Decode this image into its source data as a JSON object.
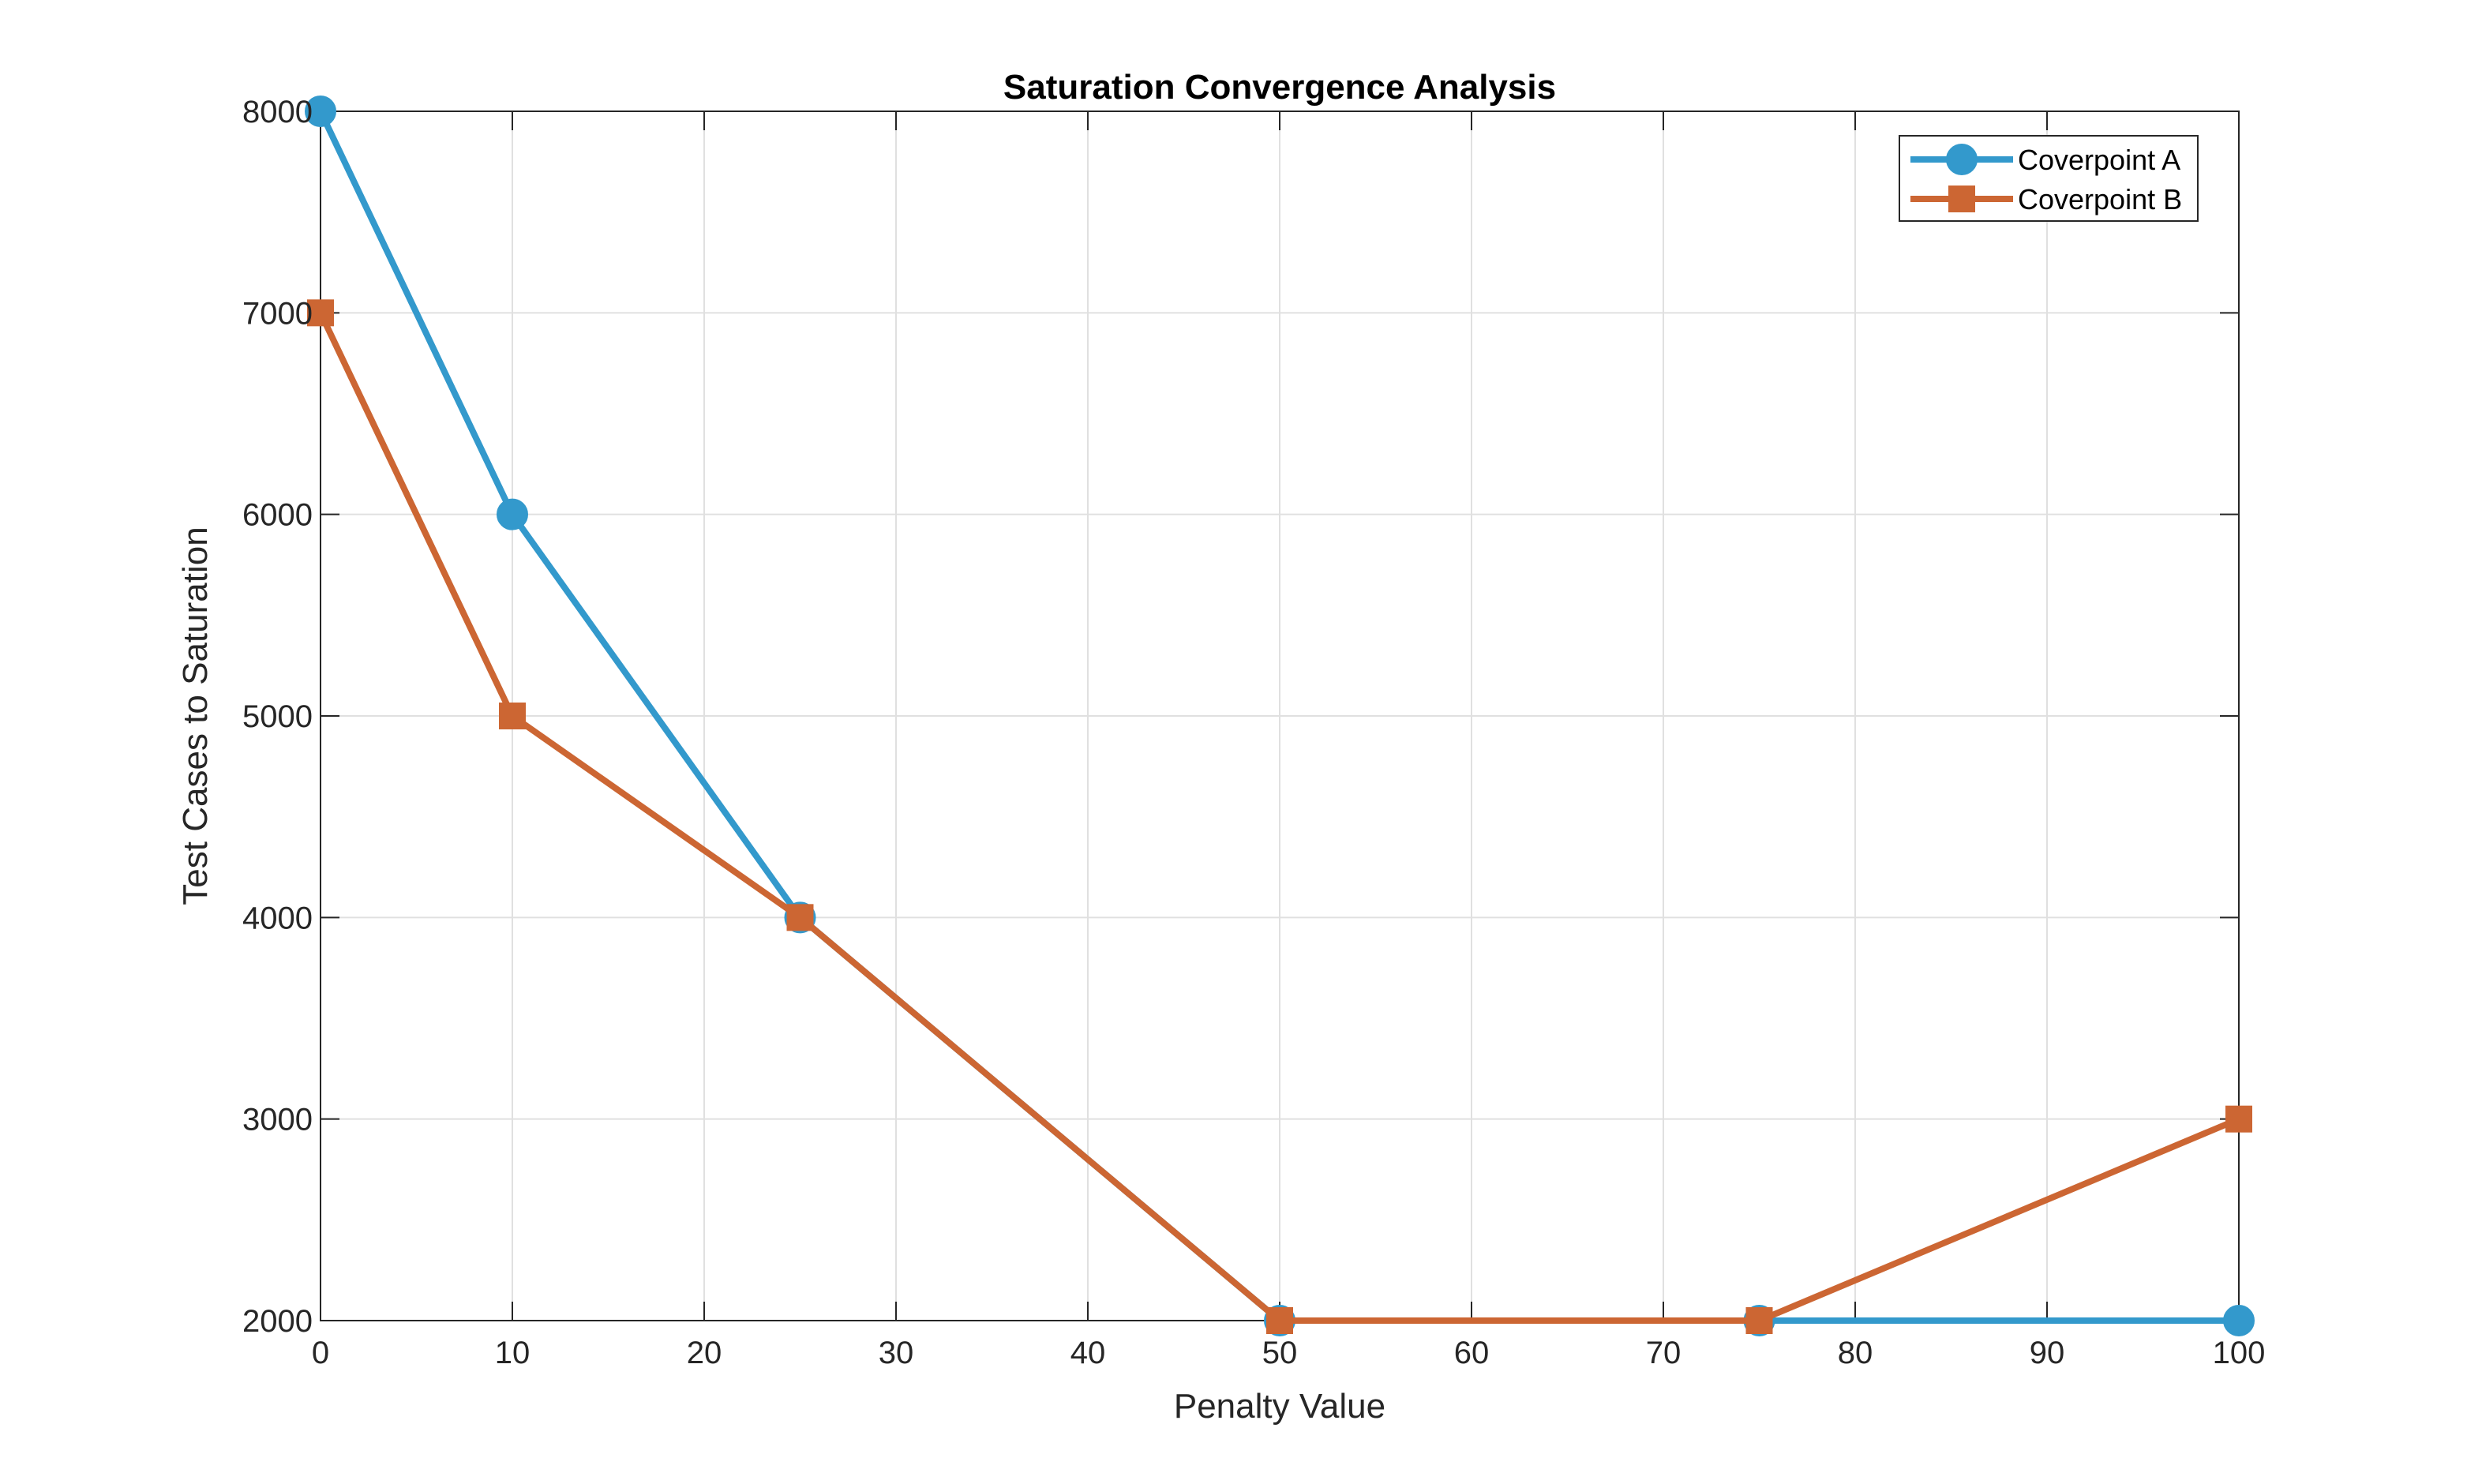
{
  "chart_data": {
    "type": "line",
    "title": "Saturation Convergence Analysis",
    "xlabel": "Penalty Value",
    "ylabel": "Test Cases to Saturation",
    "x": [
      0,
      10,
      25,
      50,
      75,
      100
    ],
    "xlim": [
      0,
      100
    ],
    "ylim": [
      2000,
      8000
    ],
    "xticks": [
      0,
      10,
      20,
      30,
      40,
      50,
      60,
      70,
      80,
      90,
      100
    ],
    "yticks": [
      2000,
      3000,
      4000,
      5000,
      6000,
      7000,
      8000
    ],
    "xtick_labels": [
      "0",
      "10",
      "20",
      "30",
      "40",
      "50",
      "60",
      "70",
      "80",
      "90",
      "100"
    ],
    "ytick_labels": [
      "2000",
      "3000",
      "4000",
      "5000",
      "6000",
      "7000",
      "8000"
    ],
    "grid": true,
    "legend_position": "top-right",
    "series": [
      {
        "name": "Coverpoint A",
        "values": [
          8000,
          6000,
          4000,
          2000,
          2000,
          2000
        ],
        "color": "#3399cc",
        "marker": "circle"
      },
      {
        "name": "Coverpoint B",
        "values": [
          7000,
          5000,
          4000,
          2000,
          2000,
          3000
        ],
        "color": "#cc6633",
        "marker": "square"
      }
    ]
  }
}
